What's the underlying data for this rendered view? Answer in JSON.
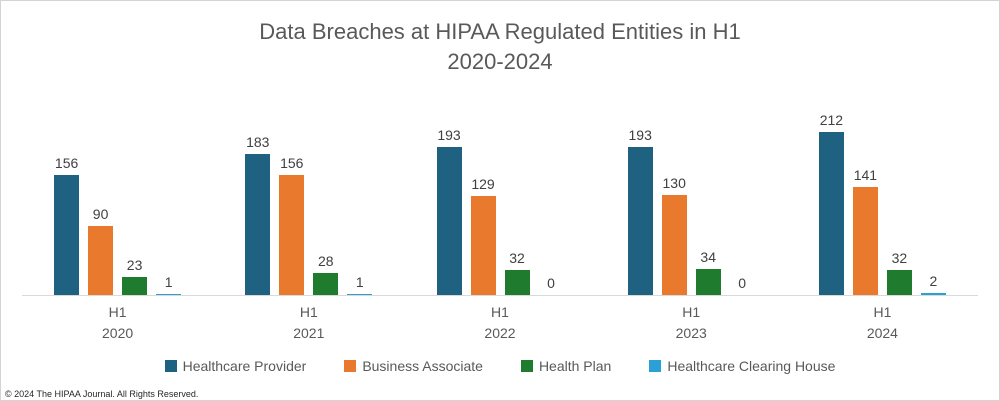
{
  "title": {
    "line1": "Data Breaches at HIPAA Regulated Entities in H1",
    "line2": "2020-2024"
  },
  "footer": {
    "copyright": "© 2024 The HIPAA Journal. All Rights Reserved."
  },
  "chart_data": {
    "type": "bar",
    "title": "Data Breaches at HIPAA Regulated Entities in H1 2020-2024",
    "categories": [
      {
        "period": "H1",
        "year": "2020"
      },
      {
        "period": "H1",
        "year": "2021"
      },
      {
        "period": "H1",
        "year": "2022"
      },
      {
        "period": "H1",
        "year": "2023"
      },
      {
        "period": "H1",
        "year": "2024"
      }
    ],
    "series": [
      {
        "name": "Healthcare Provider",
        "color": "#1F6180",
        "values": [
          156,
          183,
          193,
          193,
          212
        ]
      },
      {
        "name": "Business Associate",
        "color": "#E9792D",
        "values": [
          90,
          156,
          129,
          130,
          141
        ]
      },
      {
        "name": "Health Plan",
        "color": "#1F7B2E",
        "values": [
          23,
          28,
          32,
          34,
          32
        ]
      },
      {
        "name": "Healthcare Clearing House",
        "color": "#2BA0D6",
        "values": [
          1,
          1,
          0,
          0,
          2
        ]
      }
    ],
    "xlabel": "",
    "ylabel": "",
    "ylim": [
      0,
      260
    ],
    "grid": false,
    "value_labels": true,
    "legend_position": "bottom"
  }
}
